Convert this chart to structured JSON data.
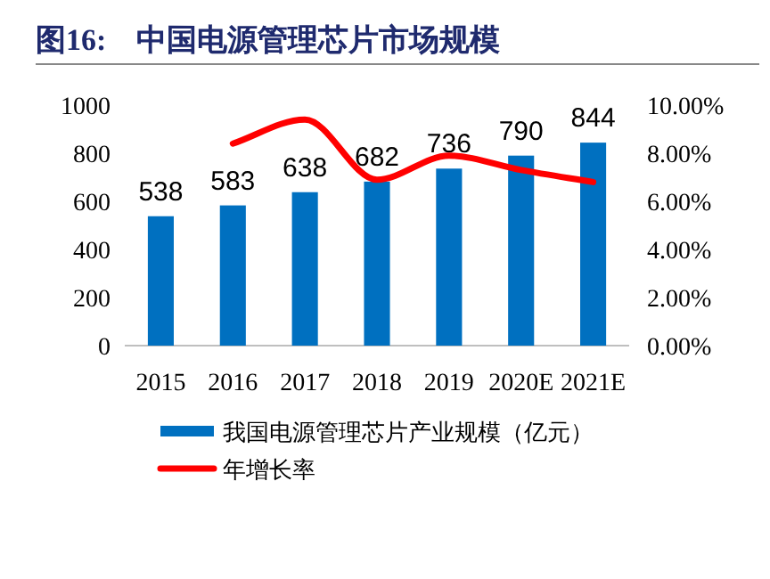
{
  "chart_data": {
    "type": "bar",
    "title": "图16:    中国电源管理芯片市场规模",
    "categories": [
      "2015",
      "2016",
      "2017",
      "2018",
      "2019",
      "2020E",
      "2021E"
    ],
    "series": [
      {
        "name": "我国电源管理芯片产业规模（亿元）",
        "color": "#0070c0",
        "values": [
          538,
          583,
          638,
          682,
          736,
          790,
          844
        ],
        "value_labels": [
          "538",
          "583",
          "638",
          "682",
          "736",
          "790",
          "844"
        ]
      },
      {
        "name": "年增长率",
        "type": "line",
        "axis": "y2",
        "color": "#ff0000",
        "values": [
          null,
          8.4,
          9.4,
          6.9,
          7.9,
          7.3,
          6.8
        ]
      }
    ],
    "ylim": [
      0,
      1000
    ],
    "yticks": [
      0,
      200,
      400,
      600,
      800,
      1000
    ],
    "y2lim": [
      0,
      10
    ],
    "y2ticks": [
      {
        "value": 0,
        "label": "0.00%"
      },
      {
        "value": 2,
        "label": "2.00%"
      },
      {
        "value": 4,
        "label": "4.00%"
      },
      {
        "value": 6,
        "label": "6.00%"
      },
      {
        "value": 8,
        "label": "8.00%"
      },
      {
        "value": 10,
        "label": "10.00%"
      }
    ],
    "legend": "bottom",
    "grid": false
  }
}
